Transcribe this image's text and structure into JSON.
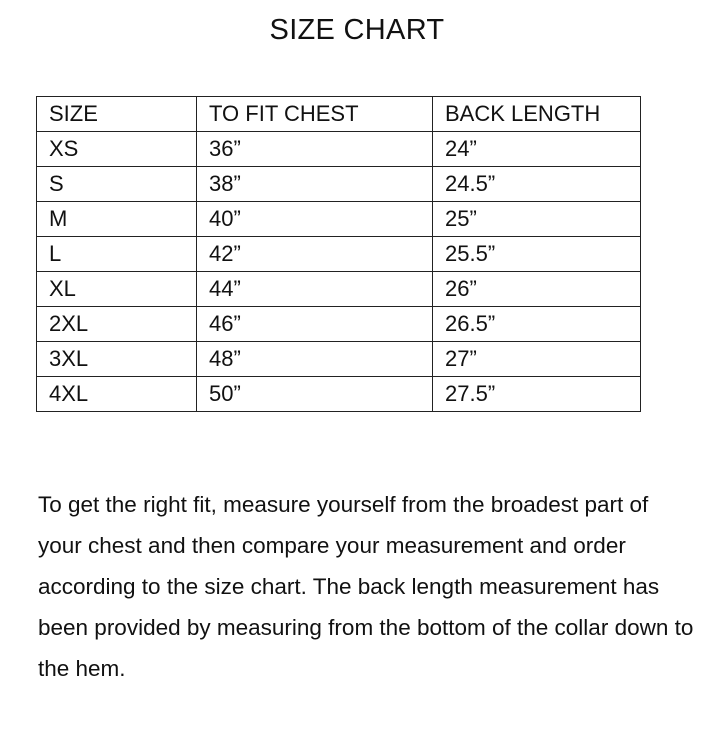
{
  "title": "SIZE CHART",
  "table": {
    "headers": [
      "SIZE",
      "TO FIT CHEST",
      "BACK LENGTH"
    ],
    "rows": [
      [
        "XS",
        "36”",
        "24”"
      ],
      [
        "S",
        "38”",
        "24.5”"
      ],
      [
        "M",
        "40”",
        "25”"
      ],
      [
        "L",
        "42”",
        "25.5”"
      ],
      [
        "XL",
        "44”",
        "26”"
      ],
      [
        "2XL",
        "46”",
        "26.5”"
      ],
      [
        "3XL",
        "48”",
        "27”"
      ],
      [
        "4XL",
        "50”",
        "27.5”"
      ]
    ]
  },
  "note": "To get the right fit, measure yourself from the broadest part of your chest and then compare your measurement and order according to the size chart. The back length measurement has been provided by measuring from the bottom of the collar down to the hem."
}
